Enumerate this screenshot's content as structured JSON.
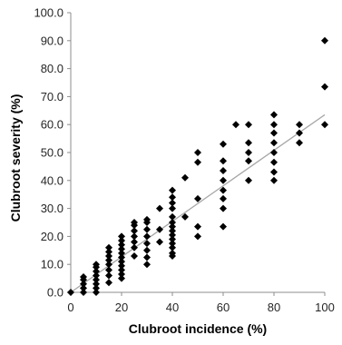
{
  "chart_data": {
    "type": "scatter",
    "title": "",
    "xlabel": "Clubroot incidence (%)",
    "ylabel": "Clubroot severity (%)",
    "xlim": [
      0,
      100
    ],
    "ylim": [
      0,
      100
    ],
    "x_ticks": [
      "0",
      "20",
      "40",
      "60",
      "80",
      "100"
    ],
    "y_ticks": [
      "0.0",
      "10.0",
      "20.0",
      "30.0",
      "40.0",
      "50.0",
      "60.0",
      "70.0",
      "80.0",
      "90.0",
      "100.0"
    ],
    "grid": false,
    "legend": false,
    "marker_color": "#000000",
    "trendline": {
      "x": [
        0,
        100
      ],
      "y": [
        0,
        63.5
      ],
      "color": "#a6a6a6"
    },
    "series": [
      {
        "points": [
          [
            0,
            0
          ],
          [
            5,
            0
          ],
          [
            5,
            1.5
          ],
          [
            5,
            3
          ],
          [
            5,
            4.5
          ],
          [
            5,
            5.5
          ],
          [
            10,
            0
          ],
          [
            10,
            1.5
          ],
          [
            10,
            3
          ],
          [
            10,
            4.5
          ],
          [
            10,
            6
          ],
          [
            10,
            7.5
          ],
          [
            10,
            9
          ],
          [
            10,
            10
          ],
          [
            15,
            3.5
          ],
          [
            15,
            6
          ],
          [
            15,
            8
          ],
          [
            15,
            10
          ],
          [
            15,
            11.5
          ],
          [
            15,
            13
          ],
          [
            15,
            14.5
          ],
          [
            15,
            16
          ],
          [
            20,
            5
          ],
          [
            20,
            6.5
          ],
          [
            20,
            8
          ],
          [
            20,
            9.5
          ],
          [
            20,
            11
          ],
          [
            20,
            12.5
          ],
          [
            20,
            14
          ],
          [
            20,
            15.5
          ],
          [
            20,
            17
          ],
          [
            20,
            18.5
          ],
          [
            20,
            20
          ],
          [
            25,
            13
          ],
          [
            25,
            16
          ],
          [
            25,
            18
          ],
          [
            25,
            20
          ],
          [
            25,
            22
          ],
          [
            25,
            24
          ],
          [
            25,
            25
          ],
          [
            30,
            10
          ],
          [
            30,
            12.5
          ],
          [
            30,
            15
          ],
          [
            30,
            17.5
          ],
          [
            30,
            20
          ],
          [
            30,
            22.5
          ],
          [
            30,
            25
          ],
          [
            30,
            26
          ],
          [
            35,
            18
          ],
          [
            35,
            22.5
          ],
          [
            35,
            30
          ],
          [
            40,
            13
          ],
          [
            40,
            14
          ],
          [
            40,
            16
          ],
          [
            40,
            17.5
          ],
          [
            40,
            19
          ],
          [
            40,
            20.5
          ],
          [
            40,
            22
          ],
          [
            40,
            23.5
          ],
          [
            40,
            25
          ],
          [
            40,
            27
          ],
          [
            40,
            30
          ],
          [
            40,
            32
          ],
          [
            40,
            34
          ],
          [
            40,
            36.5
          ],
          [
            45,
            27
          ],
          [
            45,
            41
          ],
          [
            50,
            20
          ],
          [
            50,
            23.5
          ],
          [
            50,
            33.5
          ],
          [
            50,
            46.5
          ],
          [
            50,
            50
          ],
          [
            60,
            23.5
          ],
          [
            60,
            30
          ],
          [
            60,
            33.5
          ],
          [
            60,
            36.5
          ],
          [
            60,
            40
          ],
          [
            60,
            43.5
          ],
          [
            60,
            47
          ],
          [
            60,
            53
          ],
          [
            65,
            60
          ],
          [
            70,
            40
          ],
          [
            70,
            47
          ],
          [
            70,
            50
          ],
          [
            70,
            53.5
          ],
          [
            70,
            60
          ],
          [
            80,
            40
          ],
          [
            80,
            43
          ],
          [
            80,
            46.5
          ],
          [
            80,
            50
          ],
          [
            80,
            53.5
          ],
          [
            80,
            57
          ],
          [
            80,
            60
          ],
          [
            80,
            63.5
          ],
          [
            90,
            53.5
          ],
          [
            90,
            57
          ],
          [
            90,
            60
          ],
          [
            100,
            60
          ],
          [
            100,
            73.5
          ],
          [
            100,
            90
          ]
        ]
      }
    ]
  }
}
